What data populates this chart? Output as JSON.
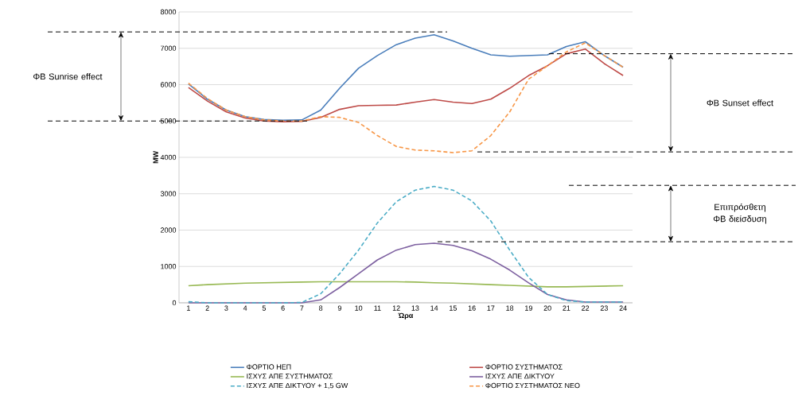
{
  "chart_data": {
    "type": "line",
    "xlabel": "Ώρα",
    "ylabel": "MW",
    "categories": [
      "1",
      "2",
      "3",
      "4",
      "5",
      "6",
      "7",
      "8",
      "9",
      "10",
      "11",
      "12",
      "13",
      "14",
      "15",
      "16",
      "17",
      "18",
      "19",
      "20",
      "21",
      "22",
      "23",
      "24"
    ],
    "ylim": [
      0,
      8000
    ],
    "yticks": [
      0,
      1000,
      2000,
      3000,
      4000,
      5000,
      6000,
      7000,
      8000
    ],
    "grid": "y",
    "legend": "bottom",
    "marker": "none",
    "series": [
      {
        "name": "ΦΟΡΤΙΟ ΗΕΠ",
        "color": "#4a7ebb",
        "line_style": "solid",
        "values": [
          6020,
          5600,
          5300,
          5120,
          5040,
          5020,
          5030,
          5300,
          5900,
          6450,
          6800,
          7100,
          7280,
          7370,
          7200,
          7000,
          6820,
          6780,
          6800,
          6820,
          7050,
          7180,
          6800,
          6480
        ]
      },
      {
        "name": "ΦΟΡΤΙΟ ΣΥΣΤΗΜΑΤΟΣ",
        "color": "#be4b48",
        "line_style": "solid",
        "values": [
          5920,
          5550,
          5250,
          5080,
          5000,
          4980,
          4990,
          5100,
          5320,
          5420,
          5430,
          5440,
          5520,
          5590,
          5520,
          5480,
          5600,
          5900,
          6250,
          6520,
          6850,
          6980,
          6580,
          6250
        ]
      },
      {
        "name": "ΙΣΧΥΣ ΑΠΕ ΣΥΣΤΗΜΑΤΟΣ",
        "color": "#98b954",
        "line_style": "solid",
        "values": [
          470,
          500,
          520,
          540,
          550,
          560,
          570,
          580,
          580,
          580,
          580,
          580,
          570,
          550,
          540,
          520,
          500,
          480,
          460,
          440,
          440,
          450,
          460,
          470
        ]
      },
      {
        "name": "ΙΣΧΥΣ ΑΠΕ ΔΙΚΤΥΟΥ",
        "color": "#7d60a0",
        "line_style": "solid",
        "values": [
          0,
          0,
          0,
          0,
          0,
          0,
          0,
          80,
          420,
          800,
          1180,
          1450,
          1600,
          1640,
          1580,
          1430,
          1200,
          900,
          550,
          230,
          80,
          20,
          20,
          20
        ]
      },
      {
        "name": "ΙΣΧΥΣ ΑΠΕ ΔΙΚΤΥΟΥ + 1,5 GW",
        "color": "#4bacc6",
        "line_style": "dashed",
        "values": [
          30,
          0,
          0,
          0,
          0,
          0,
          10,
          250,
          800,
          1450,
          2200,
          2780,
          3100,
          3200,
          3100,
          2800,
          2250,
          1450,
          700,
          230,
          60,
          20,
          20,
          20
        ]
      },
      {
        "name": "ΦΟΡΤΙΟ ΣΥΣΤΗΜΑΤΟΣ ΝΕΟ",
        "color": "#f79646",
        "line_style": "dashed",
        "values": [
          6040,
          5620,
          5300,
          5120,
          5030,
          5000,
          5000,
          5120,
          5100,
          4960,
          4600,
          4300,
          4200,
          4180,
          4130,
          4180,
          4600,
          5250,
          6150,
          6520,
          6900,
          7150,
          6800,
          6480
        ]
      }
    ],
    "ref_lines": [
      {
        "axis": "y",
        "value": 7450,
        "color": "#000000",
        "line_style": "dashed"
      },
      {
        "axis": "y",
        "value": 5000,
        "color": "#000000",
        "line_style": "dashed"
      },
      {
        "axis": "y",
        "value": 6850,
        "color": "#000000",
        "line_style": "dashed"
      },
      {
        "axis": "y",
        "value": 4150,
        "color": "#000000",
        "line_style": "dashed"
      },
      {
        "axis": "y",
        "value": 3230,
        "color": "#000000",
        "line_style": "dashed"
      },
      {
        "axis": "y",
        "value": 1680,
        "color": "#000000",
        "line_style": "dashed"
      }
    ],
    "annotations": [
      "ΦΒ Sunrise effect",
      "ΦΒ Sunset effect",
      "Επιπρόσθετη ΦΒ διείσδυση"
    ]
  }
}
